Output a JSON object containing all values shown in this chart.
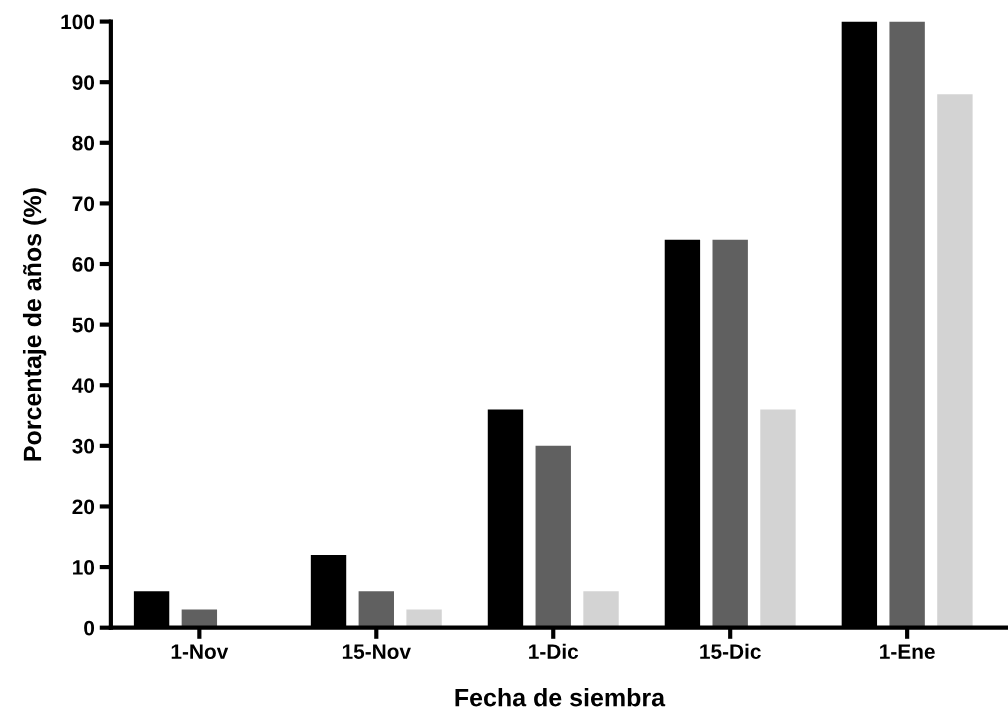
{
  "chart_data": {
    "type": "bar",
    "xlabel": "Fecha de siembra",
    "ylabel": "Porcentaje de años (%)",
    "categories": [
      "1-Nov",
      "15-Nov",
      "1-Dic",
      "15-Dic",
      "1-Ene"
    ],
    "series": [
      {
        "color": "#000000",
        "values": [
          6,
          12,
          36,
          64,
          100
        ]
      },
      {
        "color": "#606060",
        "values": [
          3,
          6,
          30,
          64,
          100
        ]
      },
      {
        "color": "#d3d3d3",
        "values": [
          0,
          3,
          6,
          36,
          88
        ]
      }
    ],
    "ylim": [
      0,
      100
    ],
    "yticks": [
      0,
      10,
      20,
      30,
      40,
      50,
      60,
      70,
      80,
      90,
      100
    ],
    "grid": false,
    "legend": false
  }
}
